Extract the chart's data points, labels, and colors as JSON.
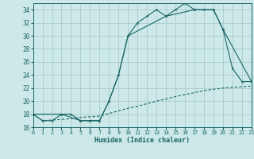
{
  "bg_color": "#cce8e8",
  "grid_color": "#aacccc",
  "line_color": "#1a6666",
  "xlabel": "Humidex (Indice chaleur)",
  "xlim": [
    0,
    23
  ],
  "ylim": [
    16,
    35
  ],
  "xticks": [
    0,
    1,
    2,
    3,
    4,
    5,
    6,
    7,
    8,
    9,
    10,
    11,
    12,
    13,
    14,
    15,
    16,
    17,
    18,
    19,
    20,
    21,
    22,
    23
  ],
  "yticks": [
    16,
    18,
    20,
    22,
    24,
    26,
    28,
    30,
    32,
    34
  ],
  "line1_x": [
    0,
    1,
    2,
    3,
    4,
    5,
    6,
    7,
    8,
    9,
    10,
    11,
    12,
    13,
    14,
    15,
    16,
    17,
    18,
    19,
    20,
    21,
    22,
    23
  ],
  "line1_y": [
    18,
    17,
    17,
    18,
    18,
    17,
    17,
    17,
    20,
    24,
    30,
    32,
    33,
    34,
    33,
    34,
    35,
    34,
    34,
    34,
    31,
    25,
    23,
    23
  ],
  "line2_x": [
    0,
    3,
    5,
    6,
    7,
    8,
    9,
    10,
    14,
    17,
    19,
    20,
    23
  ],
  "line2_y": [
    18,
    18,
    17,
    17,
    17,
    20,
    24,
    30,
    33,
    34,
    34,
    31,
    23
  ],
  "line3_x": [
    0,
    1,
    2,
    3,
    4,
    5,
    6,
    7,
    8,
    9,
    10,
    11,
    12,
    13,
    14,
    15,
    16,
    17,
    18,
    19,
    20,
    21,
    22,
    23
  ],
  "line3_y": [
    18,
    17,
    17.1,
    17.2,
    17.3,
    17.5,
    17.6,
    17.7,
    18.1,
    18.5,
    18.9,
    19.2,
    19.6,
    20.0,
    20.3,
    20.7,
    21.0,
    21.3,
    21.6,
    21.8,
    22.0,
    22.1,
    22.2,
    22.3
  ]
}
